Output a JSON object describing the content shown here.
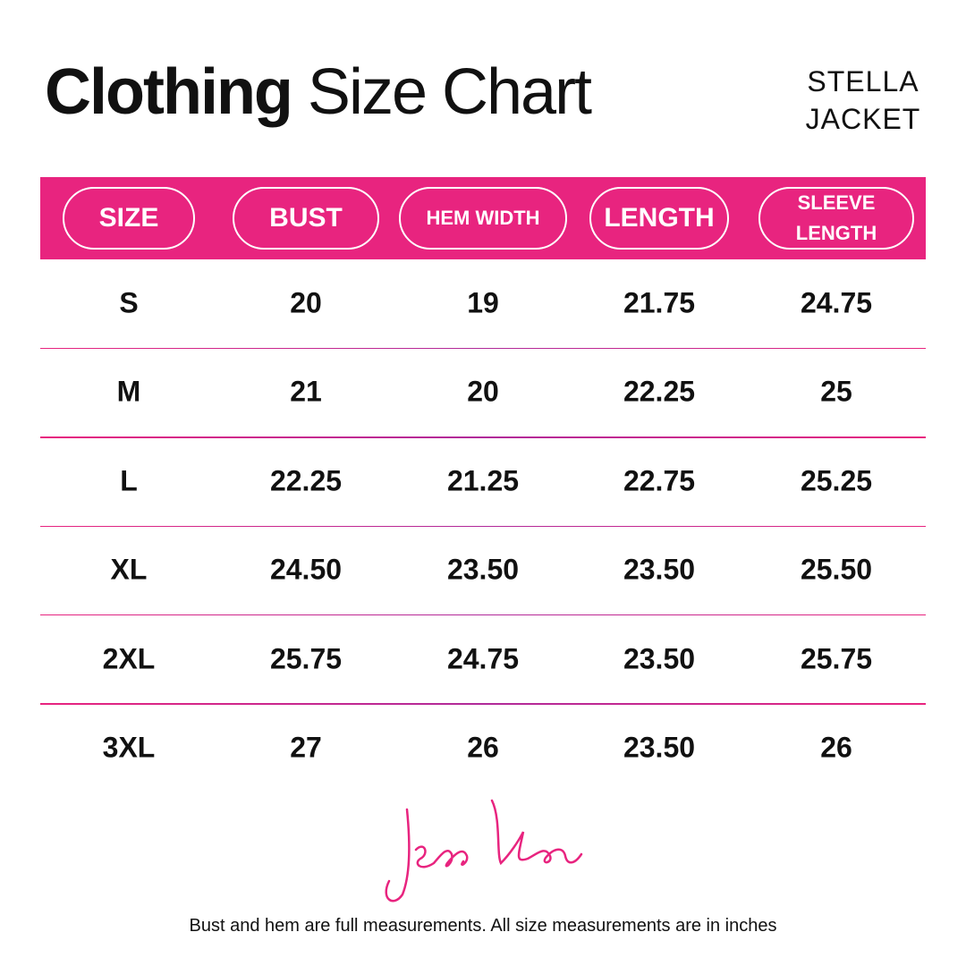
{
  "header": {
    "title_bold": "Clothing",
    "title_regular": "Size Chart",
    "product": "STELLA JACKET"
  },
  "table": {
    "columns": [
      "SIZE",
      "BUST",
      "HEM WIDTH",
      "LENGTH",
      "SLEEVE LENGTH"
    ],
    "rows": [
      [
        "S",
        "20",
        "19",
        "21.75",
        "24.75"
      ],
      [
        "M",
        "21",
        "20",
        "22.25",
        "25"
      ],
      [
        "L",
        "22.25",
        "21.25",
        "22.75",
        "25.25"
      ],
      [
        "XL",
        "24.50",
        "23.50",
        "23.50",
        "25.50"
      ],
      [
        "2XL",
        "25.75",
        "24.75",
        "23.50",
        "25.75"
      ],
      [
        "3XL",
        "27",
        "26",
        "23.50",
        "26"
      ]
    ]
  },
  "footer": {
    "note": "Bust and hem are full measurements. All size measurements are in inches"
  }
}
